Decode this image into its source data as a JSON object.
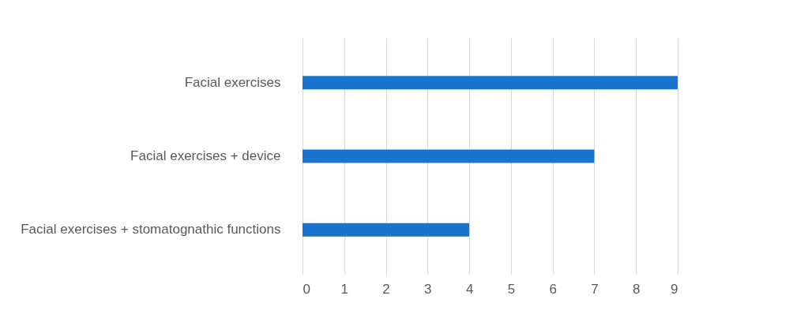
{
  "chart_data": {
    "type": "bar",
    "orientation": "horizontal",
    "categories": [
      "Facial exercises",
      "Facial exercises + device",
      "Facial exercises + stomatognathic functions"
    ],
    "values": [
      9,
      7,
      4
    ],
    "color": "#1874cd",
    "xlim": [
      0,
      9
    ],
    "xticks": [
      0,
      1,
      2,
      3,
      4,
      5,
      6,
      7,
      8,
      9
    ],
    "grid": "x"
  }
}
